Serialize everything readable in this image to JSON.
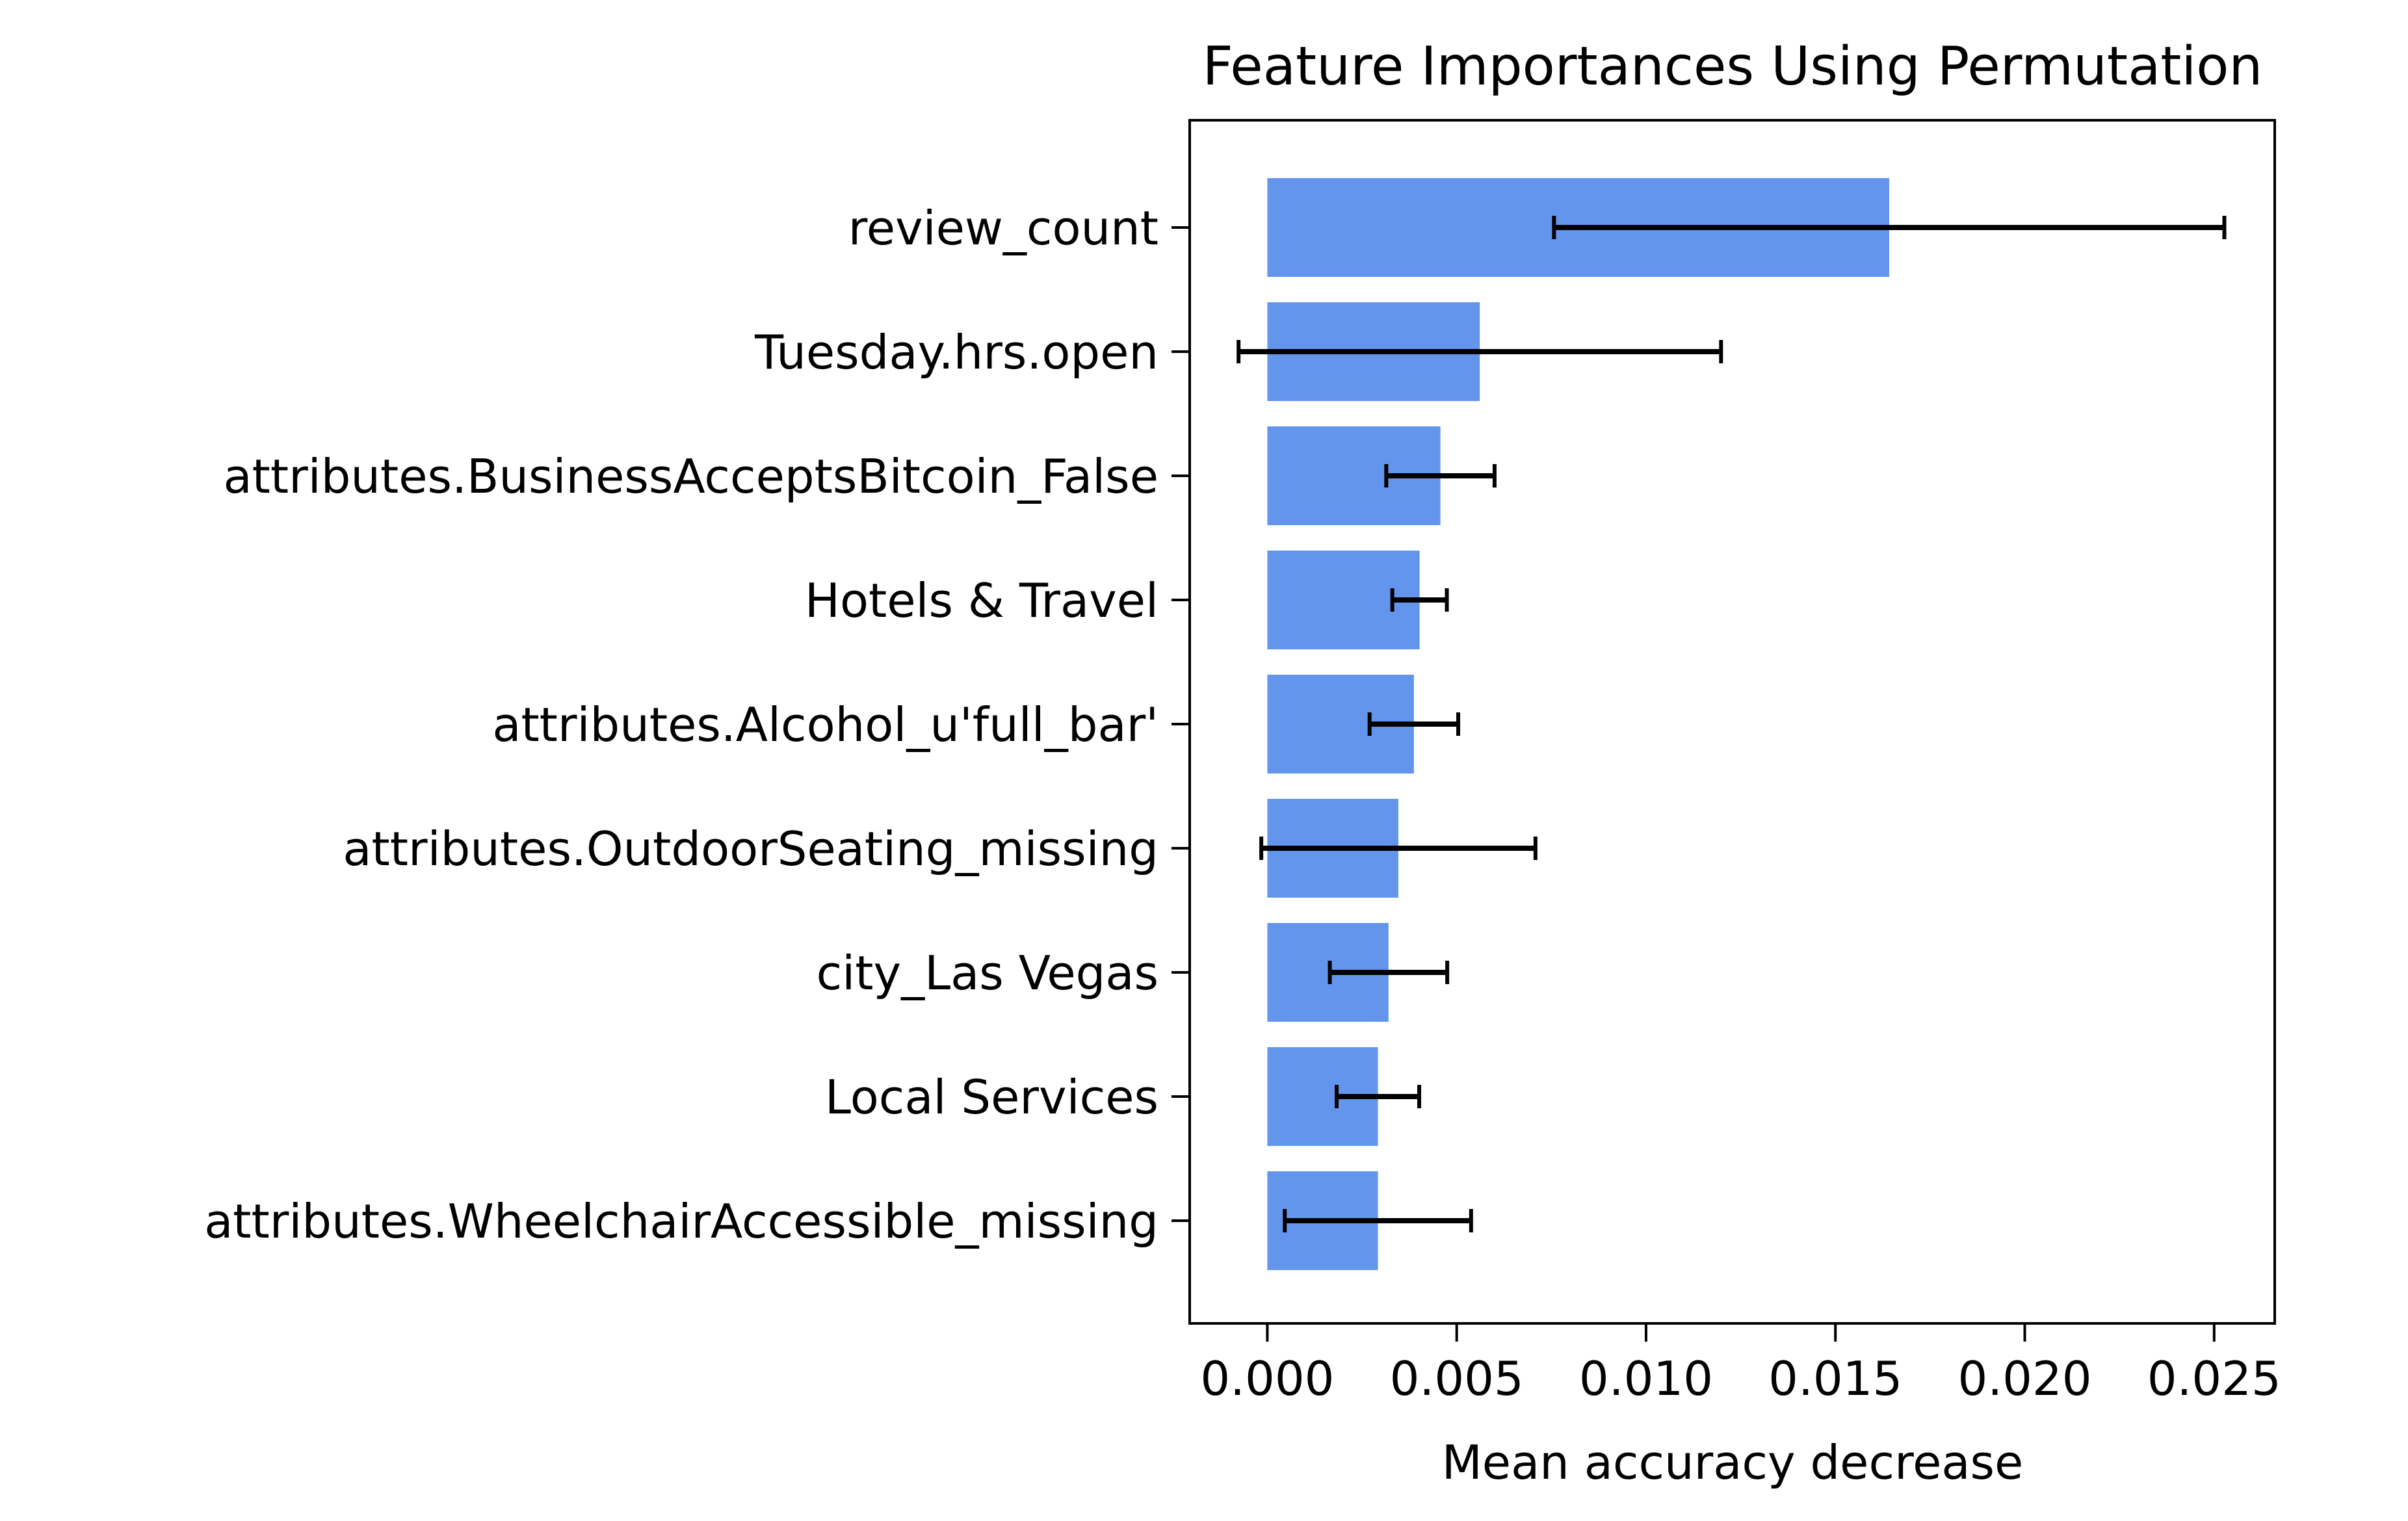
{
  "chart_data": {
    "type": "bar",
    "orientation": "horizontal",
    "title": "Feature Importances Using Permutation",
    "xlabel": "Mean accuracy decrease",
    "ylabel": "",
    "xlim": [
      -0.00205,
      0.0266
    ],
    "xticks": [
      0.0,
      0.005,
      0.01,
      0.015,
      0.02,
      0.025
    ],
    "xtick_labels": [
      "0.000",
      "0.005",
      "0.010",
      "0.015",
      "0.020",
      "0.025"
    ],
    "grid": false,
    "bar_color": "#6495ED",
    "errorbar_color": "#000000",
    "categories": [
      "review_count",
      "Tuesday.hrs.open",
      "attributes.BusinessAcceptsBitcoin_False",
      "Hotels & Travel",
      "attributes.Alcohol_u'full_bar'",
      "attributes.OutdoorSeating_missing",
      "city_Las Vegas",
      "Local Services",
      "attributes.WheelchairAccessible_missing"
    ],
    "values": [
      0.01642,
      0.00561,
      0.00457,
      0.00402,
      0.00387,
      0.00346,
      0.0032,
      0.00292,
      0.00292
    ],
    "errors": [
      0.00885,
      0.00637,
      0.00143,
      0.00072,
      0.00117,
      0.00362,
      0.00155,
      0.00109,
      0.00246
    ]
  }
}
